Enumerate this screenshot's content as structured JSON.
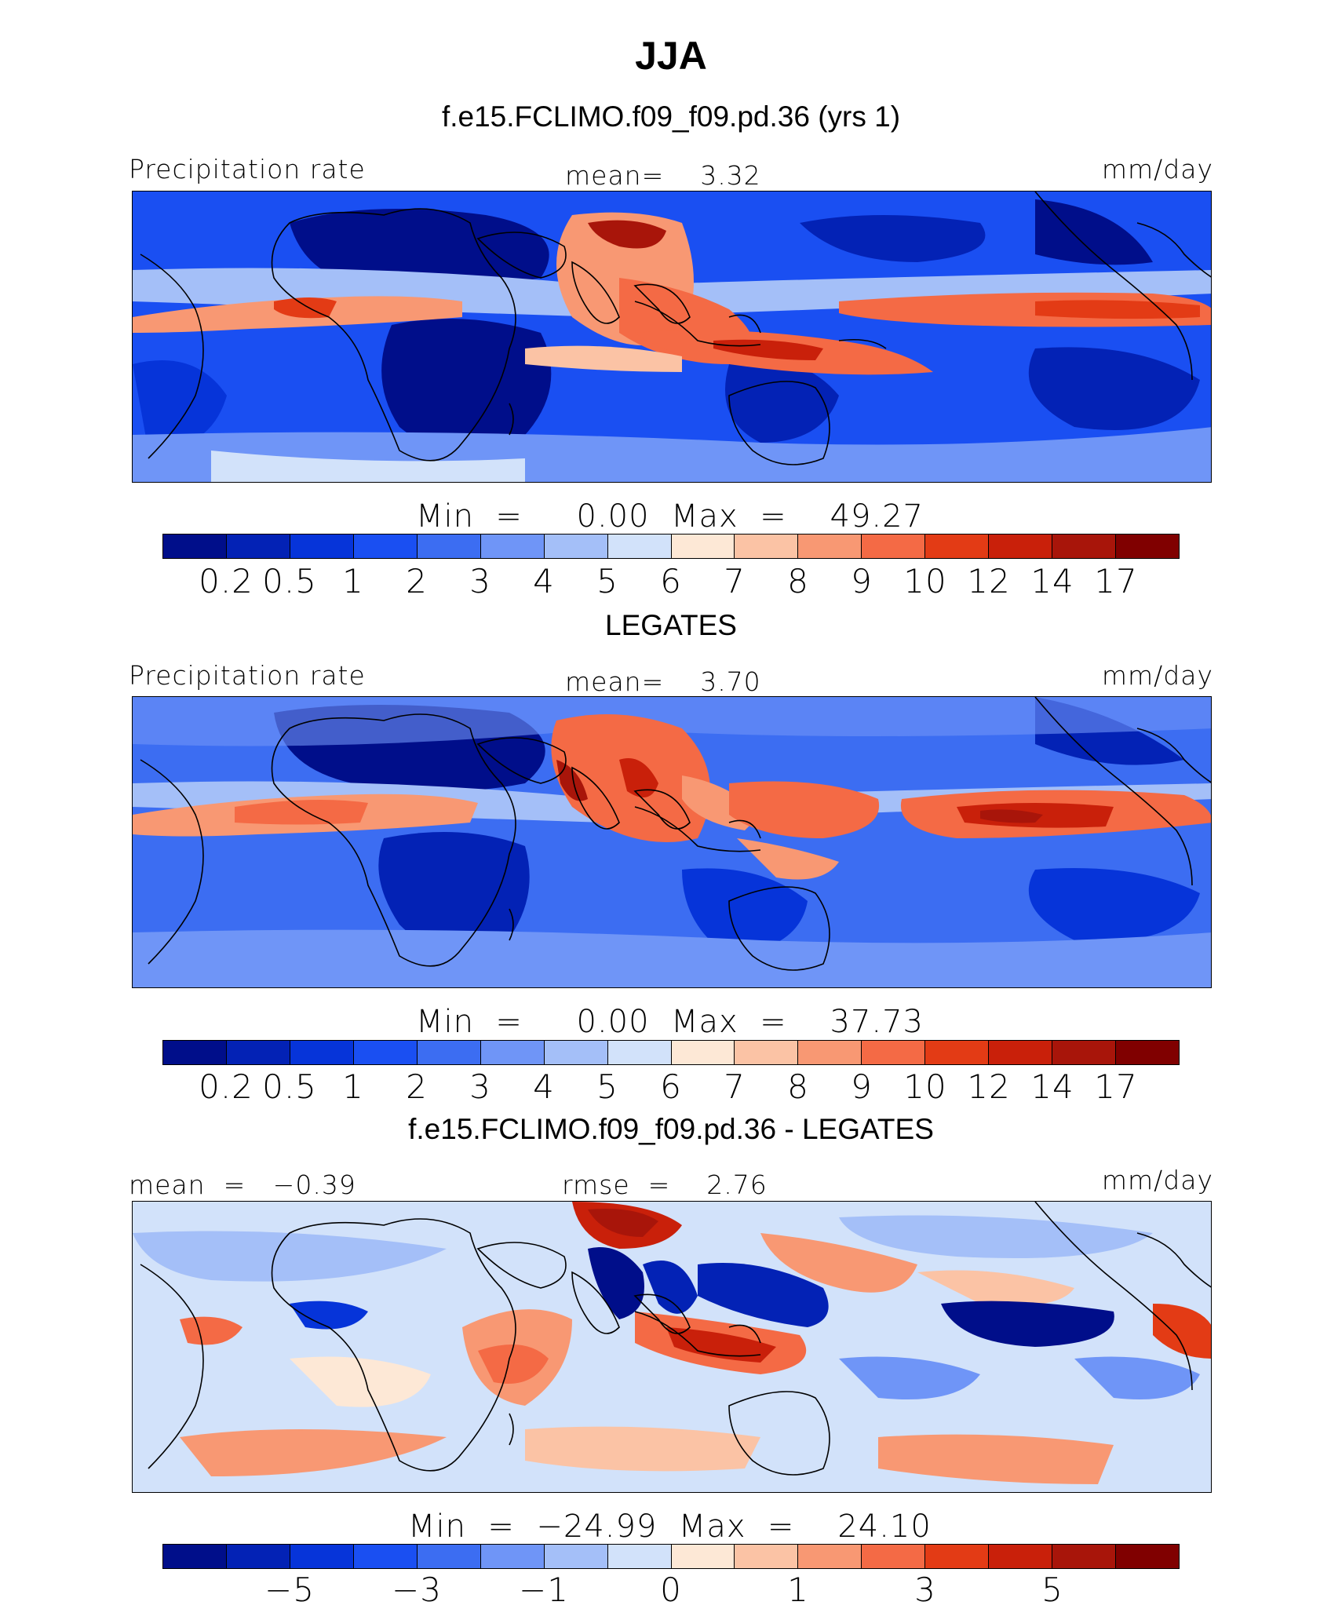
{
  "title": "JJA",
  "palette_pos": [
    "#000e8a",
    "#0322b5",
    "#0634d9",
    "#1a4ff2",
    "#3c6df2",
    "#6f95f7",
    "#a4bff8",
    "#d2e2fa",
    "#fde8d6",
    "#fbc3a5",
    "#f89873",
    "#f46a45",
    "#e33b15",
    "#c9200a",
    "#a8150a",
    "#800000"
  ],
  "panels": [
    {
      "subtitle": "f.e15.FCLIMO.f09_f09.pd.36 (yrs 1)",
      "left_label": "Precipitation rate",
      "mid_label": "mean=    3.32",
      "right_label": "mm/day",
      "minmax": "Min  =     0.00  Max  =    49.27",
      "ticks": [
        "0.2",
        "0.5",
        "1",
        "2",
        "3",
        "4",
        "5",
        "6",
        "7",
        "8",
        "9",
        "10",
        "12",
        "14",
        "17"
      ]
    },
    {
      "subtitle": "LEGATES",
      "left_label": "Precipitation rate",
      "mid_label": "mean=    3.70",
      "right_label": "mm/day",
      "minmax": "Min  =     0.00  Max  =    37.73",
      "ticks": [
        "0.2",
        "0.5",
        "1",
        "2",
        "3",
        "4",
        "5",
        "6",
        "7",
        "8",
        "9",
        "10",
        "12",
        "14",
        "17"
      ]
    },
    {
      "subtitle": "f.e15.FCLIMO.f09_f09.pd.36 - LEGATES",
      "left_label": "mean  =   −0.39",
      "mid_label": "rmse  =    2.76",
      "right_label": "mm/day",
      "minmax": "Min  =  −24.99  Max  =    24.10",
      "ticks": [
        "−5",
        "−3",
        "−1",
        "0",
        "1",
        "3",
        "5"
      ]
    }
  ]
}
